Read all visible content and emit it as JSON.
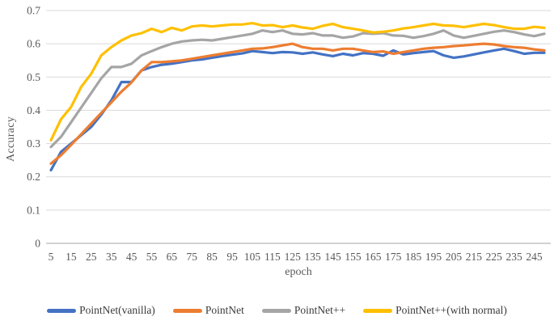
{
  "chart_data": {
    "type": "line",
    "title": "",
    "xlabel": "epoch",
    "ylabel": "Accuracy",
    "xlim": [
      5,
      250
    ],
    "ylim": [
      0,
      0.7
    ],
    "grid": "horizontal-only",
    "legend_position": "bottom",
    "grid_color": "#D9D9D9",
    "axis_color": "#A6A6A6",
    "tick_color": "#595959",
    "y_tick_labels": [
      "0",
      "0.1",
      "0.2",
      "0.3",
      "0.4",
      "0.5",
      "0.6",
      "0.7"
    ],
    "x_tick_labels": [
      "5",
      "15",
      "25",
      "35",
      "45",
      "55",
      "65",
      "75",
      "85",
      "95",
      "105",
      "115",
      "125",
      "135",
      "145",
      "155",
      "165",
      "175",
      "185",
      "195",
      "205",
      "215",
      "225",
      "235",
      "245"
    ],
    "x": [
      5,
      10,
      15,
      20,
      25,
      30,
      35,
      40,
      45,
      50,
      55,
      60,
      65,
      70,
      75,
      80,
      85,
      90,
      95,
      100,
      105,
      110,
      115,
      120,
      125,
      130,
      135,
      140,
      145,
      150,
      155,
      160,
      165,
      170,
      175,
      180,
      185,
      190,
      195,
      200,
      205,
      210,
      215,
      220,
      225,
      230,
      235,
      240,
      245,
      250
    ],
    "series": [
      {
        "name": "PointNet(vanilla)",
        "color": "#4472C4",
        "values": [
          0.22,
          0.275,
          0.3,
          0.325,
          0.35,
          0.387,
          0.43,
          0.485,
          0.485,
          0.52,
          0.53,
          0.537,
          0.54,
          0.545,
          0.55,
          0.553,
          0.558,
          0.563,
          0.567,
          0.571,
          0.578,
          0.575,
          0.572,
          0.575,
          0.574,
          0.57,
          0.574,
          0.568,
          0.563,
          0.57,
          0.565,
          0.572,
          0.57,
          0.564,
          0.58,
          0.568,
          0.572,
          0.575,
          0.578,
          0.565,
          0.558,
          0.562,
          0.568,
          0.574,
          0.58,
          0.585,
          0.578,
          0.57,
          0.573,
          0.573
        ]
      },
      {
        "name": "PointNet",
        "color": "#ED7D31",
        "values": [
          0.24,
          0.265,
          0.296,
          0.328,
          0.36,
          0.392,
          0.424,
          0.456,
          0.484,
          0.52,
          0.545,
          0.545,
          0.547,
          0.55,
          0.555,
          0.56,
          0.565,
          0.57,
          0.575,
          0.58,
          0.585,
          0.586,
          0.59,
          0.595,
          0.6,
          0.59,
          0.585,
          0.585,
          0.58,
          0.585,
          0.585,
          0.58,
          0.575,
          0.577,
          0.57,
          0.575,
          0.58,
          0.585,
          0.588,
          0.59,
          0.593,
          0.595,
          0.598,
          0.6,
          0.598,
          0.593,
          0.59,
          0.588,
          0.583,
          0.58
        ]
      },
      {
        "name": "PointNet++",
        "color": "#A5A5A5",
        "values": [
          0.29,
          0.32,
          0.364,
          0.408,
          0.452,
          0.496,
          0.53,
          0.53,
          0.54,
          0.565,
          0.578,
          0.59,
          0.6,
          0.607,
          0.61,
          0.612,
          0.61,
          0.615,
          0.62,
          0.625,
          0.63,
          0.64,
          0.635,
          0.64,
          0.63,
          0.628,
          0.632,
          0.625,
          0.625,
          0.618,
          0.622,
          0.632,
          0.63,
          0.632,
          0.625,
          0.624,
          0.618,
          0.623,
          0.63,
          0.64,
          0.625,
          0.618,
          0.624,
          0.63,
          0.636,
          0.64,
          0.635,
          0.628,
          0.623,
          0.63
        ]
      },
      {
        "name": "PointNet++(with normal)",
        "color": "#FFC000",
        "values": [
          0.31,
          0.373,
          0.41,
          0.47,
          0.51,
          0.565,
          0.59,
          0.61,
          0.625,
          0.632,
          0.645,
          0.635,
          0.648,
          0.64,
          0.652,
          0.655,
          0.652,
          0.655,
          0.658,
          0.658,
          0.662,
          0.655,
          0.656,
          0.65,
          0.655,
          0.649,
          0.645,
          0.654,
          0.66,
          0.65,
          0.645,
          0.64,
          0.634,
          0.636,
          0.64,
          0.646,
          0.65,
          0.655,
          0.66,
          0.655,
          0.654,
          0.65,
          0.655,
          0.66,
          0.656,
          0.65,
          0.645,
          0.645,
          0.651,
          0.648
        ]
      }
    ]
  }
}
